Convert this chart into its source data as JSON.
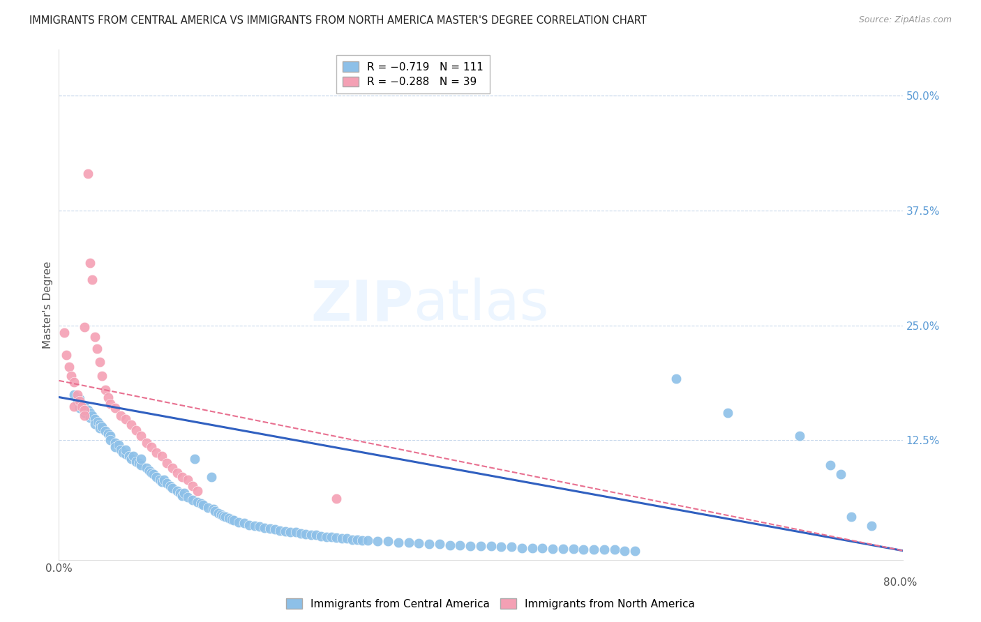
{
  "title": "IMMIGRANTS FROM CENTRAL AMERICA VS IMMIGRANTS FROM NORTH AMERICA MASTER'S DEGREE CORRELATION CHART",
  "source": "Source: ZipAtlas.com",
  "ylabel": "Master's Degree",
  "right_yticks": [
    "50.0%",
    "37.5%",
    "25.0%",
    "12.5%"
  ],
  "right_ytick_vals": [
    0.5,
    0.375,
    0.25,
    0.125
  ],
  "xlim": [
    0.0,
    0.82
  ],
  "ylim": [
    -0.005,
    0.55
  ],
  "legend_label1": "Immigrants from Central America",
  "legend_label2": "Immigrants from North America",
  "color_blue": "#8dc0e8",
  "color_pink": "#f4a0b4",
  "line_blue": "#3060c0",
  "line_pink": "#e87090",
  "blue_line": {
    "x0": 0.0,
    "y0": 0.172,
    "x1": 0.82,
    "y1": 0.005
  },
  "pink_line": {
    "x0": 0.0,
    "y0": 0.19,
    "x1": 0.82,
    "y1": 0.005
  },
  "blue_scatter": [
    [
      0.015,
      0.175
    ],
    [
      0.018,
      0.168
    ],
    [
      0.02,
      0.17
    ],
    [
      0.02,
      0.16
    ],
    [
      0.022,
      0.165
    ],
    [
      0.025,
      0.162
    ],
    [
      0.025,
      0.155
    ],
    [
      0.028,
      0.158
    ],
    [
      0.03,
      0.155
    ],
    [
      0.03,
      0.15
    ],
    [
      0.032,
      0.152
    ],
    [
      0.035,
      0.148
    ],
    [
      0.035,
      0.143
    ],
    [
      0.038,
      0.145
    ],
    [
      0.04,
      0.142
    ],
    [
      0.04,
      0.138
    ],
    [
      0.042,
      0.14
    ],
    [
      0.045,
      0.135
    ],
    [
      0.048,
      0.132
    ],
    [
      0.05,
      0.13
    ],
    [
      0.05,
      0.125
    ],
    [
      0.055,
      0.122
    ],
    [
      0.055,
      0.118
    ],
    [
      0.058,
      0.12
    ],
    [
      0.06,
      0.115
    ],
    [
      0.062,
      0.112
    ],
    [
      0.065,
      0.11
    ],
    [
      0.065,
      0.115
    ],
    [
      0.068,
      0.108
    ],
    [
      0.07,
      0.105
    ],
    [
      0.072,
      0.108
    ],
    [
      0.075,
      0.102
    ],
    [
      0.078,
      0.1
    ],
    [
      0.08,
      0.098
    ],
    [
      0.08,
      0.105
    ],
    [
      0.085,
      0.095
    ],
    [
      0.088,
      0.092
    ],
    [
      0.09,
      0.09
    ],
    [
      0.092,
      0.088
    ],
    [
      0.095,
      0.085
    ],
    [
      0.098,
      0.082
    ],
    [
      0.1,
      0.08
    ],
    [
      0.102,
      0.082
    ],
    [
      0.105,
      0.078
    ],
    [
      0.108,
      0.075
    ],
    [
      0.11,
      0.073
    ],
    [
      0.115,
      0.07
    ],
    [
      0.118,
      0.068
    ],
    [
      0.12,
      0.065
    ],
    [
      0.122,
      0.068
    ],
    [
      0.125,
      0.063
    ],
    [
      0.13,
      0.06
    ],
    [
      0.132,
      0.105
    ],
    [
      0.135,
      0.058
    ],
    [
      0.138,
      0.056
    ],
    [
      0.14,
      0.055
    ],
    [
      0.145,
      0.052
    ],
    [
      0.148,
      0.085
    ],
    [
      0.15,
      0.05
    ],
    [
      0.152,
      0.048
    ],
    [
      0.155,
      0.046
    ],
    [
      0.158,
      0.044
    ],
    [
      0.16,
      0.043
    ],
    [
      0.162,
      0.042
    ],
    [
      0.165,
      0.04
    ],
    [
      0.168,
      0.039
    ],
    [
      0.17,
      0.038
    ],
    [
      0.175,
      0.036
    ],
    [
      0.18,
      0.035
    ],
    [
      0.185,
      0.033
    ],
    [
      0.19,
      0.032
    ],
    [
      0.195,
      0.031
    ],
    [
      0.2,
      0.03
    ],
    [
      0.205,
      0.029
    ],
    [
      0.21,
      0.028
    ],
    [
      0.215,
      0.027
    ],
    [
      0.22,
      0.026
    ],
    [
      0.225,
      0.025
    ],
    [
      0.23,
      0.025
    ],
    [
      0.235,
      0.024
    ],
    [
      0.24,
      0.023
    ],
    [
      0.245,
      0.022
    ],
    [
      0.25,
      0.022
    ],
    [
      0.255,
      0.021
    ],
    [
      0.26,
      0.02
    ],
    [
      0.265,
      0.02
    ],
    [
      0.27,
      0.019
    ],
    [
      0.275,
      0.018
    ],
    [
      0.28,
      0.018
    ],
    [
      0.285,
      0.017
    ],
    [
      0.29,
      0.017
    ],
    [
      0.295,
      0.016
    ],
    [
      0.3,
      0.016
    ],
    [
      0.31,
      0.015
    ],
    [
      0.32,
      0.015
    ],
    [
      0.33,
      0.014
    ],
    [
      0.34,
      0.014
    ],
    [
      0.35,
      0.013
    ],
    [
      0.36,
      0.012
    ],
    [
      0.37,
      0.012
    ],
    [
      0.38,
      0.011
    ],
    [
      0.39,
      0.011
    ],
    [
      0.4,
      0.01
    ],
    [
      0.41,
      0.01
    ],
    [
      0.42,
      0.01
    ],
    [
      0.43,
      0.009
    ],
    [
      0.44,
      0.009
    ],
    [
      0.45,
      0.008
    ],
    [
      0.46,
      0.008
    ],
    [
      0.47,
      0.008
    ],
    [
      0.48,
      0.007
    ],
    [
      0.49,
      0.007
    ],
    [
      0.5,
      0.007
    ],
    [
      0.51,
      0.006
    ],
    [
      0.52,
      0.006
    ],
    [
      0.53,
      0.006
    ],
    [
      0.54,
      0.006
    ],
    [
      0.55,
      0.005
    ],
    [
      0.56,
      0.005
    ],
    [
      0.6,
      0.192
    ],
    [
      0.65,
      0.155
    ],
    [
      0.72,
      0.13
    ],
    [
      0.75,
      0.098
    ],
    [
      0.76,
      0.088
    ],
    [
      0.77,
      0.042
    ],
    [
      0.79,
      0.032
    ]
  ],
  "pink_scatter": [
    [
      0.005,
      0.242
    ],
    [
      0.007,
      0.218
    ],
    [
      0.01,
      0.205
    ],
    [
      0.012,
      0.195
    ],
    [
      0.015,
      0.188
    ],
    [
      0.015,
      0.162
    ],
    [
      0.018,
      0.175
    ],
    [
      0.02,
      0.168
    ],
    [
      0.022,
      0.162
    ],
    [
      0.025,
      0.158
    ],
    [
      0.025,
      0.152
    ],
    [
      0.025,
      0.248
    ],
    [
      0.028,
      0.415
    ],
    [
      0.03,
      0.318
    ],
    [
      0.032,
      0.3
    ],
    [
      0.035,
      0.238
    ],
    [
      0.037,
      0.225
    ],
    [
      0.04,
      0.21
    ],
    [
      0.042,
      0.195
    ],
    [
      0.045,
      0.18
    ],
    [
      0.048,
      0.172
    ],
    [
      0.05,
      0.165
    ],
    [
      0.055,
      0.16
    ],
    [
      0.06,
      0.152
    ],
    [
      0.065,
      0.148
    ],
    [
      0.07,
      0.142
    ],
    [
      0.075,
      0.136
    ],
    [
      0.08,
      0.13
    ],
    [
      0.085,
      0.122
    ],
    [
      0.09,
      0.118
    ],
    [
      0.095,
      0.112
    ],
    [
      0.1,
      0.108
    ],
    [
      0.105,
      0.1
    ],
    [
      0.11,
      0.095
    ],
    [
      0.115,
      0.09
    ],
    [
      0.12,
      0.085
    ],
    [
      0.125,
      0.082
    ],
    [
      0.13,
      0.075
    ],
    [
      0.135,
      0.07
    ],
    [
      0.27,
      0.062
    ]
  ]
}
